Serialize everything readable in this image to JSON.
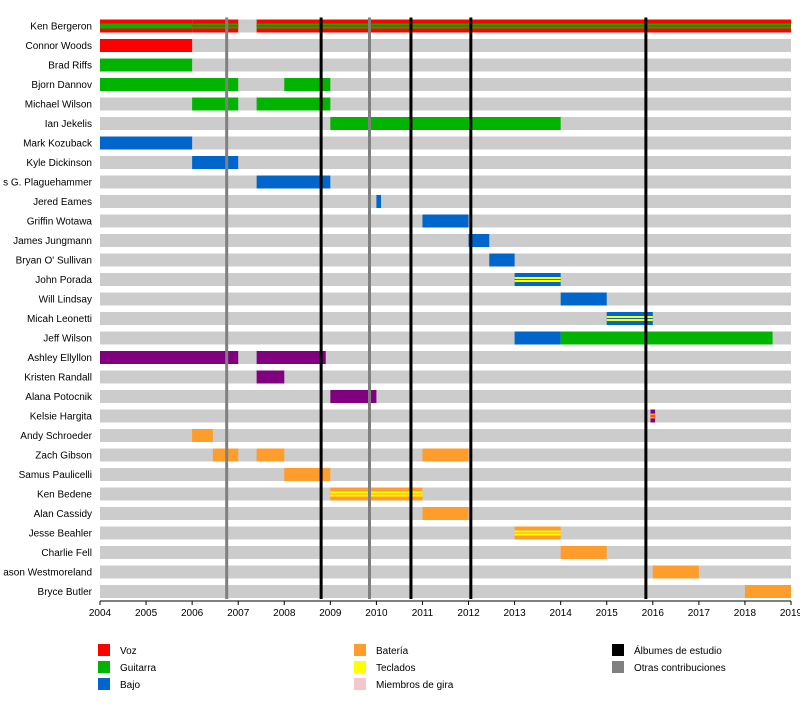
{
  "chart_data": {
    "type": "timeline",
    "x_range": [
      2004,
      2019
    ],
    "ticks": [
      "2004",
      "2005",
      "2006",
      "2007",
      "2008",
      "2009",
      "2010",
      "2011",
      "2012",
      "2013",
      "2014",
      "2015",
      "2016",
      "2017",
      "2018",
      "2019"
    ],
    "colors": {
      "Voz": "#ff0000",
      "Guitarra": "#00b400",
      "Bajo": "#0066cc",
      "Batería": "#ff9d2c",
      "Teclados": "#ffff00",
      "Miembros de gira": "#f5c6cb",
      "Otros": "#800080",
      "Álbumes de estudio": "#000000",
      "Otras contribuciones": "#808080",
      "background": "#cccccc"
    },
    "members": [
      {
        "name": "Ken Bergeron",
        "bars": [
          {
            "start": 2004.0,
            "end": 2006.0,
            "colors": [
              "Voz",
              "Guitarra"
            ]
          },
          {
            "start": 2006.0,
            "end": 2007.0,
            "colors": [
              "Voz",
              "Guitarra",
              "Voz"
            ]
          },
          {
            "start": 2007.4,
            "end": 2019.0,
            "colors": [
              "Voz",
              "Guitarra",
              "Voz"
            ]
          }
        ]
      },
      {
        "name": "Connor Woods",
        "bars": [
          {
            "start": 2004.0,
            "end": 2006.0,
            "colors": [
              "Voz"
            ]
          }
        ]
      },
      {
        "name": "Brad Riffs",
        "bars": [
          {
            "start": 2004.0,
            "end": 2006.0,
            "colors": [
              "Guitarra"
            ]
          }
        ]
      },
      {
        "name": "Bjorn Dannov",
        "bars": [
          {
            "start": 2004.0,
            "end": 2007.0,
            "colors": [
              "Guitarra"
            ]
          },
          {
            "start": 2008.0,
            "end": 2009.0,
            "colors": [
              "Guitarra"
            ]
          }
        ]
      },
      {
        "name": "Michael Wilson",
        "bars": [
          {
            "start": 2006.0,
            "end": 2007.0,
            "colors": [
              "Guitarra"
            ]
          },
          {
            "start": 2007.4,
            "end": 2009.0,
            "colors": [
              "Guitarra"
            ]
          }
        ]
      },
      {
        "name": "Ian Jekelis",
        "bars": [
          {
            "start": 2009.0,
            "end": 2014.0,
            "colors": [
              "Guitarra"
            ]
          }
        ]
      },
      {
        "name": "Mark Kozuback",
        "bars": [
          {
            "start": 2004.0,
            "end": 2006.0,
            "colors": [
              "Bajo"
            ]
          }
        ]
      },
      {
        "name": "Kyle Dickinson",
        "bars": [
          {
            "start": 2006.0,
            "end": 2007.0,
            "colors": [
              "Bajo"
            ]
          }
        ]
      },
      {
        "name": "s G. Plaguehammer",
        "bars": [
          {
            "start": 2007.4,
            "end": 2009.0,
            "colors": [
              "Bajo"
            ]
          }
        ]
      },
      {
        "name": "Jered Eames",
        "bars": [
          {
            "start": 2010.0,
            "end": 2010.1,
            "colors": [
              "Bajo"
            ]
          }
        ]
      },
      {
        "name": "Griffin Wotawa",
        "bars": [
          {
            "start": 2011.0,
            "end": 2012.0,
            "colors": [
              "Bajo"
            ]
          }
        ]
      },
      {
        "name": "James Jungmann",
        "bars": [
          {
            "start": 2012.0,
            "end": 2012.45,
            "colors": [
              "Bajo"
            ]
          }
        ]
      },
      {
        "name": "Bryan O' Sullivan",
        "bars": [
          {
            "start": 2012.45,
            "end": 2013.0,
            "colors": [
              "Bajo"
            ]
          }
        ]
      },
      {
        "name": "John Porada",
        "bars": [
          {
            "start": 2013.0,
            "end": 2014.0,
            "colors": [
              "Bajo",
              "Teclados",
              "Bajo"
            ]
          }
        ]
      },
      {
        "name": "Will Lindsay",
        "bars": [
          {
            "start": 2014.0,
            "end": 2015.0,
            "colors": [
              "Bajo"
            ]
          }
        ]
      },
      {
        "name": "Micah Leonetti",
        "bars": [
          {
            "start": 2015.0,
            "end": 2016.0,
            "colors": [
              "Bajo",
              "Teclados",
              "Bajo"
            ]
          }
        ]
      },
      {
        "name": "Jeff Wilson",
        "bars": [
          {
            "start": 2013.0,
            "end": 2014.0,
            "colors": [
              "Bajo"
            ]
          },
          {
            "start": 2014.0,
            "end": 2018.6,
            "colors": [
              "Guitarra"
            ]
          }
        ]
      },
      {
        "name": "Ashley Ellyllon",
        "bars": [
          {
            "start": 2004.0,
            "end": 2007.0,
            "colors": [
              "Otros"
            ]
          },
          {
            "start": 2007.4,
            "end": 2008.9,
            "colors": [
              "Otros"
            ]
          }
        ]
      },
      {
        "name": "Kristen Randall",
        "bars": [
          {
            "start": 2007.4,
            "end": 2008.0,
            "colors": [
              "Otros"
            ]
          }
        ]
      },
      {
        "name": "Alana Potocnik",
        "bars": [
          {
            "start": 2009.0,
            "end": 2010.0,
            "colors": [
              "Otros"
            ]
          }
        ]
      },
      {
        "name": "Kelsie Hargita",
        "bars": [
          {
            "start": 2015.95,
            "end": 2016.05,
            "colors": [
              "Otros",
              "Batería",
              "Voz"
            ]
          }
        ]
      },
      {
        "name": "Andy Schroeder",
        "bars": [
          {
            "start": 2006.0,
            "end": 2006.45,
            "colors": [
              "Batería"
            ]
          }
        ]
      },
      {
        "name": "Zach Gibson",
        "bars": [
          {
            "start": 2006.45,
            "end": 2007.0,
            "colors": [
              "Batería"
            ]
          },
          {
            "start": 2007.4,
            "end": 2008.0,
            "colors": [
              "Batería"
            ]
          },
          {
            "start": 2011.0,
            "end": 2012.0,
            "colors": [
              "Batería"
            ]
          }
        ]
      },
      {
        "name": "Samus Paulicelli",
        "bars": [
          {
            "start": 2008.0,
            "end": 2009.0,
            "colors": [
              "Batería"
            ]
          }
        ]
      },
      {
        "name": "Ken Bedene",
        "bars": [
          {
            "start": 2009.0,
            "end": 2011.0,
            "colors": [
              "Batería",
              "Teclados",
              "Batería"
            ]
          }
        ]
      },
      {
        "name": "Alan Cassidy",
        "bars": [
          {
            "start": 2011.0,
            "end": 2012.0,
            "colors": [
              "Batería"
            ]
          }
        ]
      },
      {
        "name": "Jesse Beahler",
        "bars": [
          {
            "start": 2013.0,
            "end": 2014.0,
            "colors": [
              "Batería",
              "Teclados",
              "Batería"
            ]
          }
        ]
      },
      {
        "name": "Charlie Fell",
        "bars": [
          {
            "start": 2014.0,
            "end": 2015.0,
            "colors": [
              "Batería"
            ]
          }
        ]
      },
      {
        "name": "ason Westmoreland",
        "bars": [
          {
            "start": 2016.0,
            "end": 2017.0,
            "colors": [
              "Batería"
            ]
          }
        ]
      },
      {
        "name": "Bryce Butler",
        "bars": [
          {
            "start": 2018.0,
            "end": 2019.0,
            "colors": [
              "Batería"
            ]
          }
        ]
      }
    ],
    "studio_album_lines": [
      2008.8,
      2010.75,
      2012.05,
      2015.85
    ],
    "other_contribution_lines": [
      2006.75,
      2009.85
    ],
    "legend": [
      {
        "label": "Voz",
        "color": "Voz"
      },
      {
        "label": "Guitarra",
        "color": "Guitarra"
      },
      {
        "label": "Bajo",
        "color": "Bajo"
      },
      {
        "label": "Batería",
        "color": "Batería"
      },
      {
        "label": "Teclados",
        "color": "Teclados"
      },
      {
        "label": "Miembros de gira",
        "color": "Miembros de gira"
      },
      {
        "label": "Álbumes de estudio",
        "color": "Álbumes de estudio"
      },
      {
        "label": "Otras contribuciones",
        "color": "Otras contribuciones"
      }
    ]
  }
}
